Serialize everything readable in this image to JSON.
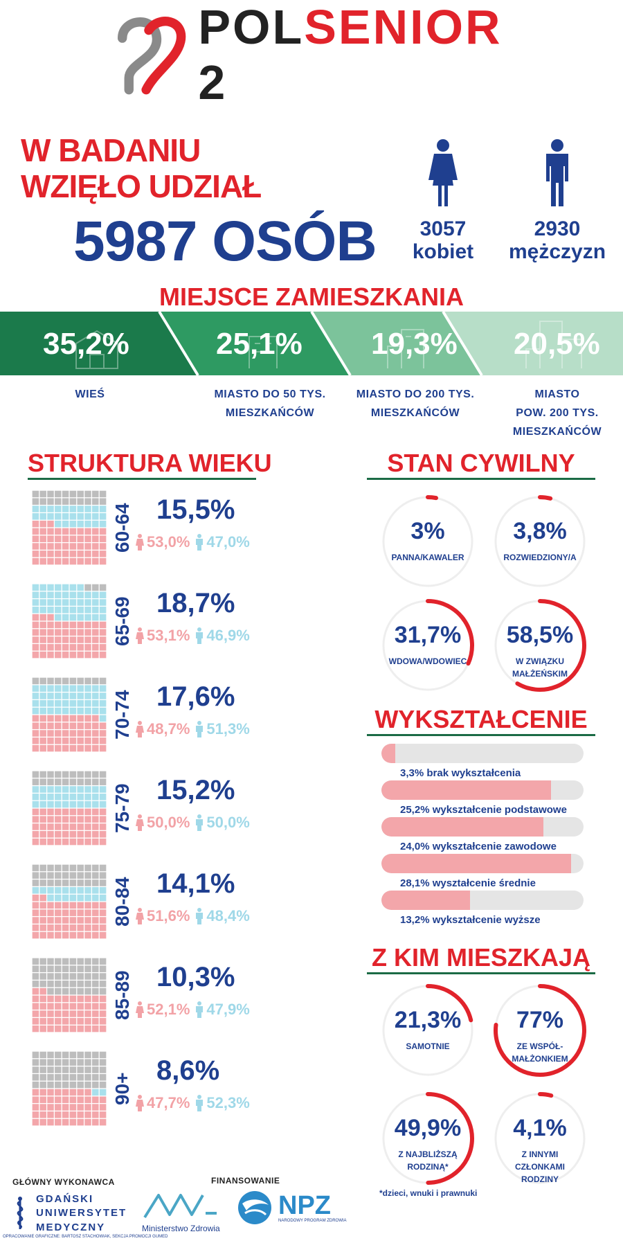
{
  "header": {
    "brand_prefix": "POL",
    "brand_red": "SENIOR",
    "brand_suffix": " 2"
  },
  "intro": {
    "line1": "W BADANIU",
    "line2": "WZIĘŁO UDZIAŁ",
    "total": "5987 OSÓB",
    "women_count": "3057",
    "women_label": "kobiet",
    "men_count": "2930",
    "men_label": "mężczyzn"
  },
  "residence": {
    "title": "MIEJSCE ZAMIESZKANIA",
    "items": [
      {
        "pct": "35,2%",
        "label1": "WIEŚ",
        "label2": "",
        "label3": "",
        "color": "#1b7a4b"
      },
      {
        "pct": "25,1%",
        "label1": "MIASTO DO 50 TYS.",
        "label2": "MIESZKAŃCÓW",
        "label3": "",
        "color": "#2e9a62"
      },
      {
        "pct": "19,3%",
        "label1": "MIASTO DO 200 TYS.",
        "label2": "MIESZKAŃCÓW",
        "label3": "",
        "color": "#7cc39b"
      },
      {
        "pct": "20,5%",
        "label1": "MIASTO",
        "label2": "POW. 200 TYS.",
        "label3": "MIESZKAŃCÓW",
        "color": "#b7dec8"
      }
    ]
  },
  "age": {
    "title": "STRUKTURA WIEKU",
    "groups": [
      {
        "label": "60-64",
        "pct": "15,5%",
        "female": "53,0%",
        "male": "47,0%",
        "share": 0.155,
        "f": 0.53
      },
      {
        "label": "65-69",
        "pct": "18,7%",
        "female": "53,1%",
        "male": "46,9%",
        "share": 0.187,
        "f": 0.531
      },
      {
        "label": "70-74",
        "pct": "17,6%",
        "female": "48,7%",
        "male": "51,3%",
        "share": 0.176,
        "f": 0.487
      },
      {
        "label": "75-79",
        "pct": "15,2%",
        "female": "50,0%",
        "male": "50,0%",
        "share": 0.152,
        "f": 0.5
      },
      {
        "label": "80-84",
        "pct": "14,1%",
        "female": "51,6%",
        "male": "48,4%",
        "share": 0.141,
        "f": 0.516
      },
      {
        "label": "85-89",
        "pct": "10,3%",
        "female": "52,1%",
        "male": "47,9%",
        "share": 0.103,
        "f": 0.521
      },
      {
        "label": "90+",
        "pct": "8,6%",
        "female": "47,7%",
        "male": "52,3%",
        "share": 0.086,
        "f": 0.477
      }
    ]
  },
  "civil": {
    "title": "STAN CYWILNY",
    "items": [
      {
        "value": "3%",
        "label1": "PANNA/KAWALER",
        "label2": "",
        "fraction": 0.03
      },
      {
        "value": "3,8%",
        "label1": "ROZWIEDZIONY/A",
        "label2": "",
        "fraction": 0.038
      },
      {
        "value": "31,7%",
        "label1": "WDOWA/WDOWIEC",
        "label2": "",
        "fraction": 0.317
      },
      {
        "value": "58,5%",
        "label1": "W ZWIĄZKU",
        "label2": "MAŁŻEŃSKIM",
        "fraction": 0.585
      }
    ]
  },
  "education": {
    "title": "WYKSZTAŁCENIE",
    "items": [
      {
        "label": "3,3% brak wykształcenia",
        "fraction": 0.07
      },
      {
        "label": "25,2% wykształcenie podstawowe",
        "fraction": 0.84
      },
      {
        "label": "24,0% wykształcenie zawodowe",
        "fraction": 0.8
      },
      {
        "label": "28,1% wyształcenie średnie",
        "fraction": 0.94
      },
      {
        "label": "13,2% wykształcenie wyższe",
        "fraction": 0.44
      }
    ]
  },
  "living": {
    "title": "Z KIM MIESZKAJĄ",
    "items": [
      {
        "value": "21,3%",
        "label1": "SAMOTNIE",
        "label2": "",
        "label3": "",
        "fraction": 0.213
      },
      {
        "value": "77%",
        "label1": "ZE WSPÓŁ-",
        "label2": "MAŁŻONKIEM",
        "label3": "",
        "fraction": 0.77
      },
      {
        "value": "49,9%",
        "label1": "Z NAJBLIŻSZĄ",
        "label2": "RODZINĄ*",
        "label3": "",
        "fraction": 0.499
      },
      {
        "value": "4,1%",
        "label1": "Z INNYMI",
        "label2": "CZŁONKAMI",
        "label3": "RODZINY",
        "fraction": 0.041
      }
    ],
    "footnote": "*dzieci, wnuki i prawnuki"
  },
  "footer": {
    "executor_label": "GŁÓWNY WYKONAWCA",
    "university_l1": "GDAŃSKI",
    "university_l2": "UNIWERSYTET",
    "university_l3": "MEDYCZNY",
    "funding_label": "FINANSOWANIE",
    "ministry": "Ministerstwo Zdrowia",
    "npz": "NPZ",
    "npz_sub": "NARODOWY PROGRAM ZDROWIA",
    "credit": "OPRACOWANIE GRAFICZNE: BARTOSZ STACHOWIAK, SEKCJA PROMOCJI GUMED"
  }
}
